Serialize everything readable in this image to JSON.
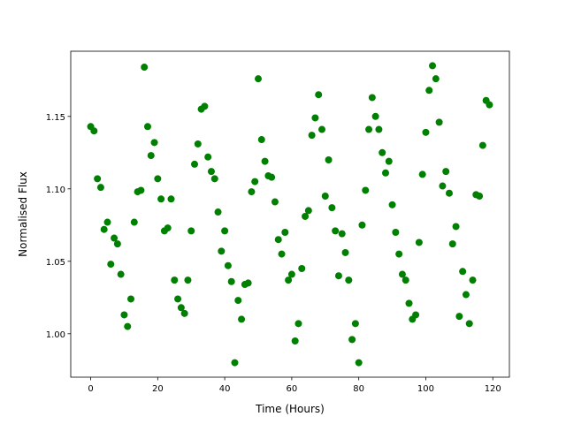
{
  "chart_data": {
    "type": "scatter",
    "x_label": "Time (Hours)",
    "y_label": "Normalised Flux",
    "x": [
      0,
      1,
      2,
      3,
      4,
      5,
      6,
      7,
      8,
      9,
      10,
      11,
      12,
      13,
      14,
      15,
      16,
      17,
      18,
      19,
      20,
      21,
      22,
      23,
      24,
      25,
      26,
      27,
      28,
      29,
      30,
      31,
      32,
      33,
      34,
      35,
      36,
      37,
      38,
      39,
      40,
      41,
      42,
      43,
      44,
      45,
      46,
      47,
      48,
      49,
      50,
      51,
      52,
      53,
      54,
      55,
      56,
      57,
      58,
      59,
      60,
      61,
      62,
      63,
      64,
      65,
      66,
      67,
      68,
      69,
      70,
      71,
      72,
      73,
      74,
      75,
      76,
      77,
      78,
      79,
      80,
      81,
      82,
      83,
      84,
      85,
      86,
      87,
      88,
      89,
      90,
      91,
      92,
      93,
      94,
      95,
      96,
      97,
      98,
      99,
      100,
      101,
      102,
      103,
      104,
      105,
      106,
      107,
      108,
      109,
      110,
      111,
      112,
      113,
      114,
      115,
      116,
      117,
      118,
      119
    ],
    "values": [
      1.143,
      1.14,
      1.107,
      1.101,
      1.072,
      1.077,
      1.048,
      1.066,
      1.062,
      1.041,
      1.013,
      1.005,
      1.024,
      1.077,
      1.098,
      1.099,
      1.184,
      1.143,
      1.123,
      1.132,
      1.107,
      1.093,
      1.071,
      1.073,
      1.093,
      1.037,
      1.024,
      1.018,
      1.014,
      1.037,
      1.071,
      1.117,
      1.131,
      1.155,
      1.157,
      1.122,
      1.112,
      1.107,
      1.084,
      1.057,
      1.071,
      1.047,
      1.036,
      0.98,
      1.023,
      1.01,
      1.034,
      1.035,
      1.098,
      1.105,
      1.176,
      1.134,
      1.119,
      1.109,
      1.108,
      1.091,
      1.065,
      1.055,
      1.07,
      1.037,
      1.041,
      0.995,
      1.007,
      1.045,
      1.081,
      1.085,
      1.137,
      1.149,
      1.165,
      1.141,
      1.095,
      1.12,
      1.087,
      1.071,
      1.04,
      1.069,
      1.056,
      1.037,
      0.996,
      1.007,
      0.98,
      1.075,
      1.099,
      1.141,
      1.163,
      1.15,
      1.141,
      1.125,
      1.111,
      1.119,
      1.089,
      1.07,
      1.055,
      1.041,
      1.037,
      1.021,
      1.01,
      1.013,
      1.063,
      1.11,
      1.139,
      1.168,
      1.185,
      1.176,
      1.146,
      1.102,
      1.112,
      1.097,
      1.062,
      1.074,
      1.012,
      1.043,
      1.027,
      1.007,
      1.037,
      1.096,
      1.095,
      1.13,
      1.161,
      1.158
    ],
    "color": "#008000",
    "xlim": [
      -5.95,
      124.95
    ],
    "xticks": [
      0,
      20,
      40,
      60,
      80,
      100,
      120
    ],
    "ylim": [
      0.97,
      1.195
    ],
    "yticks": [
      {
        "value": 1.0,
        "label": "1.00"
      },
      1.05,
      {
        "value": 1.1,
        "label": "1.10"
      },
      1.15
    ],
    "grid": false
  }
}
